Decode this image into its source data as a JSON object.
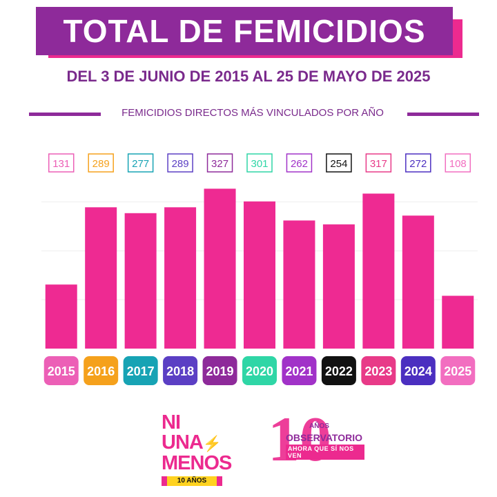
{
  "header": {
    "title": "TOTAL DE FEMICIDIOS",
    "subtitle": "DEL 3 DE JUNIO DE 2015 AL 25 DE MAYO DE 2025"
  },
  "chart_data": {
    "type": "bar",
    "title": "FEMICIDIOS DIRECTOS MÁS VINCULADOS POR AÑO",
    "categories": [
      "2015",
      "2016",
      "2017",
      "2018",
      "2019",
      "2020",
      "2021",
      "2022",
      "2023",
      "2024",
      "2025"
    ],
    "values": [
      131,
      289,
      277,
      289,
      327,
      301,
      262,
      254,
      317,
      272,
      108
    ],
    "category_colors": [
      "#ec5fb6",
      "#f5a11c",
      "#17a3b4",
      "#5b3fc4",
      "#8e2a9a",
      "#2fd6a6",
      "#a132c8",
      "#111111",
      "#e83a88",
      "#4b2fc0",
      "#f26ec0"
    ],
    "bar_color": "#ee2a92",
    "ylim": [
      0,
      360
    ],
    "grid": true,
    "legend": "none"
  },
  "colors": {
    "title_bg": "#8e2a9a",
    "title_shadow": "#ec2a8f",
    "accent_text": "#7a2a8c"
  },
  "logos": {
    "niunamenos": {
      "line1": "NI UNA",
      "line2": "MENOS",
      "years": "10 AÑOS"
    },
    "observatorio": {
      "number": "10",
      "anos": "AÑOS",
      "name": "OBSERVATORIO",
      "slogan": "AHORA QUE SÍ NOS VEN"
    }
  }
}
